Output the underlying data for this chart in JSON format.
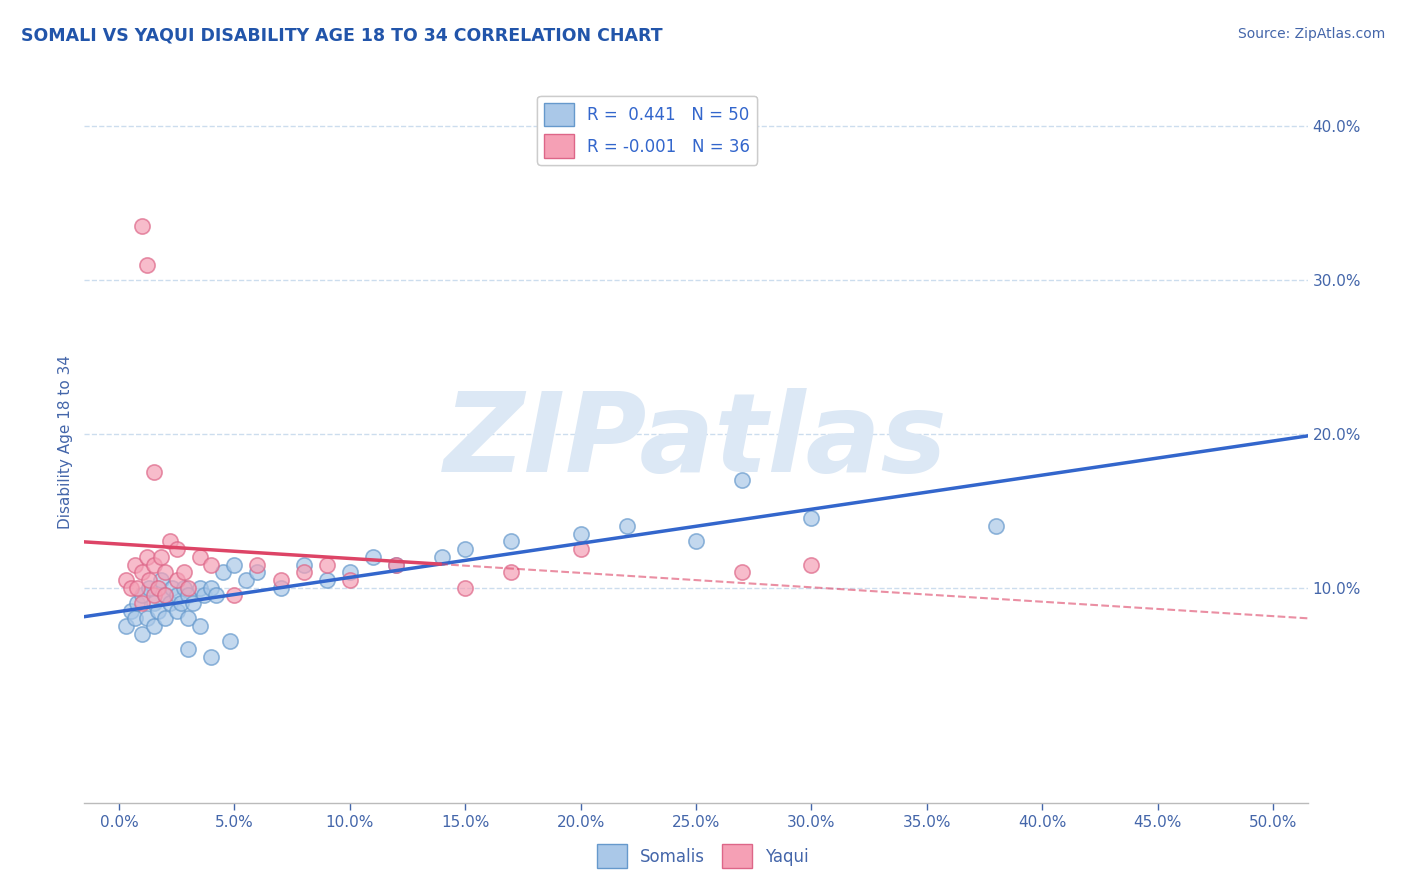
{
  "title": "SOMALI VS YAQUI DISABILITY AGE 18 TO 34 CORRELATION CHART",
  "source_text": "Source: ZipAtlas.com",
  "xlabel_ticks": [
    "0.0%",
    "5.0%",
    "10.0%",
    "15.0%",
    "20.0%",
    "25.0%",
    "30.0%",
    "35.0%",
    "40.0%",
    "45.0%",
    "50.0%"
  ],
  "xlabel_vals": [
    0.0,
    5.0,
    10.0,
    15.0,
    20.0,
    25.0,
    30.0,
    35.0,
    40.0,
    45.0,
    50.0
  ],
  "ylabel_ticks": [
    "10.0%",
    "20.0%",
    "30.0%",
    "40.0%"
  ],
  "ylabel_vals": [
    10.0,
    20.0,
    30.0,
    40.0
  ],
  "ylabel_label": "Disability Age 18 to 34",
  "xlim": [
    -1.5,
    51.5
  ],
  "ylim": [
    -4.0,
    43.0
  ],
  "somali_R": 0.441,
  "somali_N": 50,
  "yaqui_R": -0.001,
  "yaqui_N": 36,
  "somali_color": "#aac8e8",
  "somali_edge": "#6699cc",
  "yaqui_color": "#f5a0b5",
  "yaqui_edge": "#dd6688",
  "trend_somali_color": "#3366cc",
  "trend_yaqui_color": "#dd4466",
  "watermark_color": "#dce8f5",
  "watermark_text": "ZIPatlas",
  "title_color": "#2255aa",
  "axis_label_color": "#4466aa",
  "tick_color": "#4466aa",
  "grid_color": "#ccddee",
  "somali_x": [
    0.3,
    0.5,
    0.7,
    0.8,
    1.0,
    1.0,
    1.2,
    1.3,
    1.5,
    1.5,
    1.7,
    1.8,
    2.0,
    2.0,
    2.2,
    2.3,
    2.5,
    2.5,
    2.7,
    2.8,
    3.0,
    3.0,
    3.2,
    3.5,
    3.7,
    4.0,
    4.2,
    4.5,
    5.0,
    5.5,
    6.0,
    7.0,
    8.0,
    9.0,
    10.0,
    11.0,
    12.0,
    14.0,
    15.0,
    17.0,
    20.0,
    22.0,
    25.0,
    27.0,
    30.0,
    38.0,
    3.0,
    3.5,
    4.0,
    4.8
  ],
  "somali_y": [
    7.5,
    8.5,
    8.0,
    9.0,
    7.0,
    9.5,
    8.0,
    10.0,
    7.5,
    9.0,
    8.5,
    10.5,
    8.0,
    9.5,
    9.0,
    10.0,
    8.5,
    9.5,
    9.0,
    10.0,
    8.0,
    9.5,
    9.0,
    10.0,
    9.5,
    10.0,
    9.5,
    11.0,
    11.5,
    10.5,
    11.0,
    10.0,
    11.5,
    10.5,
    11.0,
    12.0,
    11.5,
    12.0,
    12.5,
    13.0,
    13.5,
    14.0,
    13.0,
    17.0,
    14.5,
    14.0,
    6.0,
    7.5,
    5.5,
    6.5
  ],
  "yaqui_x": [
    0.3,
    0.5,
    0.7,
    0.8,
    1.0,
    1.0,
    1.2,
    1.3,
    1.5,
    1.5,
    1.7,
    1.8,
    2.0,
    2.0,
    2.2,
    2.5,
    2.5,
    2.8,
    3.0,
    3.5,
    4.0,
    5.0,
    6.0,
    7.0,
    8.0,
    9.0,
    10.0,
    12.0,
    15.0,
    17.0,
    20.0,
    1.0,
    1.2,
    1.5,
    27.0,
    30.0
  ],
  "yaqui_y": [
    10.5,
    10.0,
    11.5,
    10.0,
    11.0,
    9.0,
    12.0,
    10.5,
    9.5,
    11.5,
    10.0,
    12.0,
    9.5,
    11.0,
    13.0,
    10.5,
    12.5,
    11.0,
    10.0,
    12.0,
    11.5,
    9.5,
    11.5,
    10.5,
    11.0,
    11.5,
    10.5,
    11.5,
    10.0,
    11.0,
    12.5,
    33.5,
    31.0,
    17.5,
    11.0,
    11.5
  ]
}
